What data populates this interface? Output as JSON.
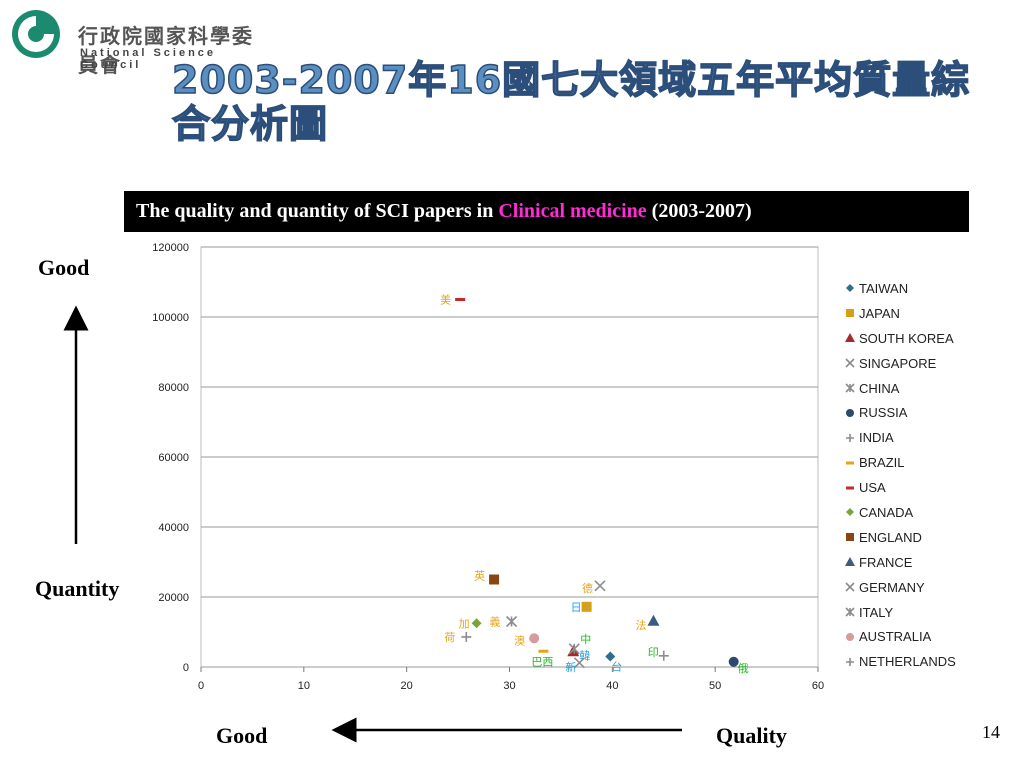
{
  "logo": {
    "chinese": "行政院國家科學委員會",
    "english": "National Science Council"
  },
  "slide": {
    "title": "2003-2007年16國七大領域五年平均質量綜合分析圖",
    "banner_prefix": "The quality and quantity of SCI papers in ",
    "banner_highlight": "Clinical medicine",
    "banner_suffix": " (2003-2007)",
    "label_good_top": "Good",
    "label_quantity": "Quantity",
    "label_good_bottom": "Good",
    "label_quality": "Quality",
    "page_number": "14"
  },
  "colors": {
    "highlight": "#FF2BD6",
    "title": "#5B8FC0"
  },
  "chart_data": {
    "type": "scatter",
    "title": "",
    "xlabel": "",
    "ylabel": "",
    "xlim": [
      0,
      60
    ],
    "ylim": [
      0,
      120000
    ],
    "xticks": [
      0,
      10,
      20,
      30,
      40,
      50,
      60
    ],
    "yticks": [
      0,
      20000,
      40000,
      60000,
      80000,
      100000,
      120000
    ],
    "grid": "horizontal",
    "legend_position": "right",
    "series": [
      {
        "name": "TAIWAN",
        "marker": "diamond",
        "color": "#2E6F8E",
        "x": 39.8,
        "y": 3000,
        "cn": "台",
        "cn_color": "#29A3DC"
      },
      {
        "name": "JAPAN",
        "marker": "square",
        "color": "#D4A017",
        "x": 37.5,
        "y": 17200,
        "cn": "日",
        "cn_color": "#29A3DC"
      },
      {
        "name": "SOUTH KOREA",
        "marker": "triangle",
        "color": "#A52A2A",
        "x": 36.2,
        "y": 4500,
        "cn": "韓",
        "cn_color": "#29A3DC"
      },
      {
        "name": "SINGAPORE",
        "marker": "x",
        "color": "#8C8C8C",
        "x": 36.8,
        "y": 1200,
        "cn": "新",
        "cn_color": "#29A3DC"
      },
      {
        "name": "CHINA",
        "marker": "star",
        "color": "#8C8C8C",
        "x": 36.3,
        "y": 5200,
        "cn": "中",
        "cn_color": "#22B822"
      },
      {
        "name": "RUSSIA",
        "marker": "circle",
        "color": "#2D4A6E",
        "x": 51.8,
        "y": 1500,
        "cn": "俄",
        "cn_color": "#22B822"
      },
      {
        "name": "INDIA",
        "marker": "plus",
        "color": "#8C8C8C",
        "x": 45.0,
        "y": 3200,
        "cn": "印",
        "cn_color": "#22B822"
      },
      {
        "name": "BRAZIL",
        "marker": "dash",
        "color": "#E8A317",
        "x": 33.3,
        "y": 4500,
        "cn": "巴西",
        "cn_color": "#22B822"
      },
      {
        "name": "USA",
        "marker": "dash",
        "color": "#C62828",
        "x": 25.2,
        "y": 105000,
        "cn": "美",
        "cn_color": "#E8A317"
      },
      {
        "name": "CANADA",
        "marker": "diamond",
        "color": "#7AA33E",
        "x": 26.8,
        "y": 12500,
        "cn": "加",
        "cn_color": "#E8A317"
      },
      {
        "name": "ENGLAND",
        "marker": "square",
        "color": "#8B4513",
        "x": 28.5,
        "y": 25000,
        "cn": "英",
        "cn_color": "#E8A317"
      },
      {
        "name": "FRANCE",
        "marker": "triangle",
        "color": "#3D5A80",
        "x": 44.0,
        "y": 13200,
        "cn": "法",
        "cn_color": "#E8A317"
      },
      {
        "name": "GERMANY",
        "marker": "x",
        "color": "#8C8C8C",
        "x": 38.8,
        "y": 23200,
        "cn": "德",
        "cn_color": "#E8A317"
      },
      {
        "name": "ITALY",
        "marker": "star",
        "color": "#8C8C8C",
        "x": 30.2,
        "y": 13000,
        "cn": "義",
        "cn_color": "#E8A317"
      },
      {
        "name": "AUSTRALIA",
        "marker": "circle",
        "color": "#D79B9B",
        "x": 32.4,
        "y": 8200,
        "cn": "澳",
        "cn_color": "#E8A317"
      },
      {
        "name": "NETHERLANDS",
        "marker": "plus",
        "color": "#8C8C8C",
        "x": 25.8,
        "y": 8600,
        "cn": "荷",
        "cn_color": "#E8A317"
      }
    ]
  }
}
